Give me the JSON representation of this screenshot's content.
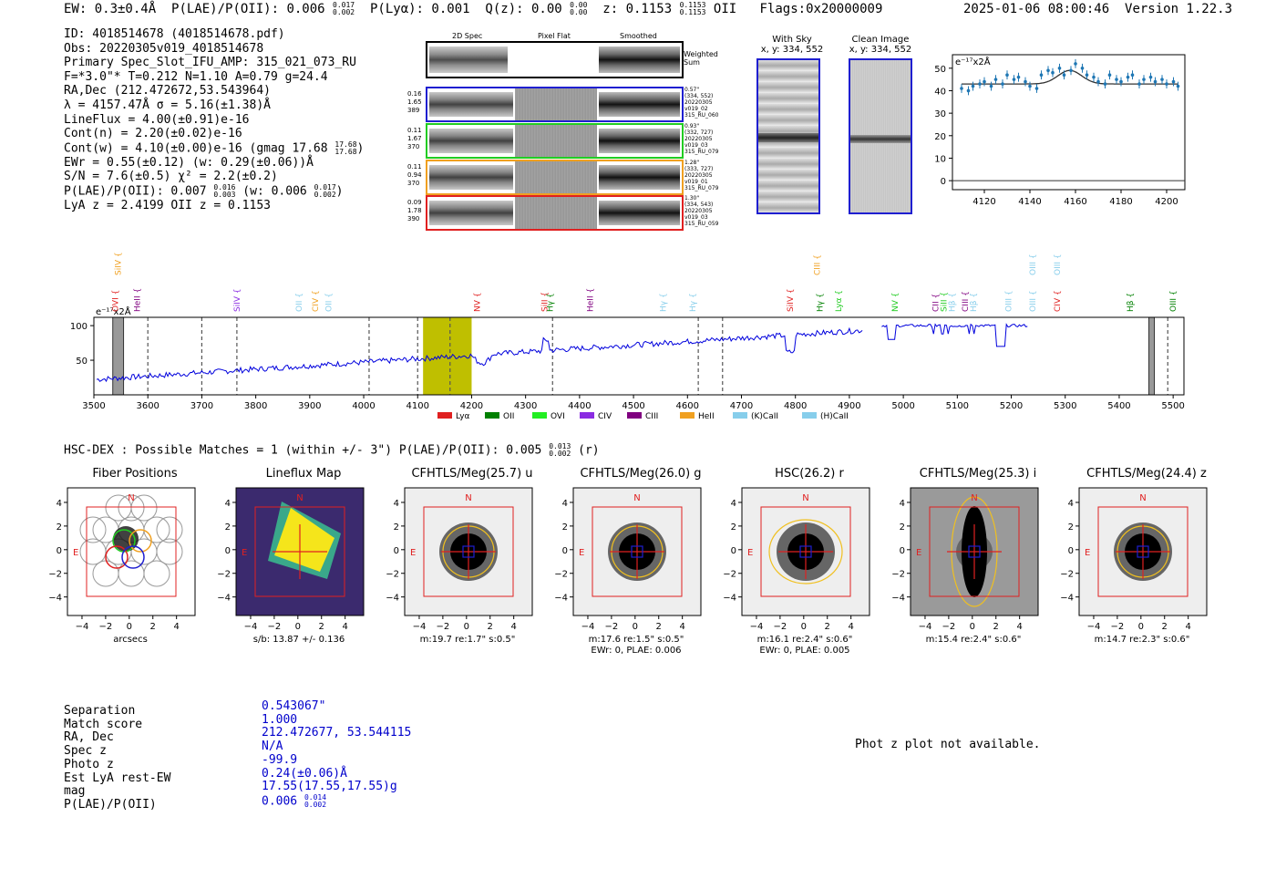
{
  "header": {
    "ew": "EW: 0.3±0.4Å",
    "plae_prefix": "P(LAE)/P(OII): 0.006",
    "plae_hi": "0.017",
    "plae_lo": "0.002",
    "plya": "P(Lyα): 0.001",
    "qz_prefix": "Q(z): 0.00",
    "qz_hi": "0.00",
    "qz_lo": "0.00",
    "z_prefix": "z: 0.1153",
    "z_hi": "0.1153",
    "z_lo": "0.1153",
    "z_line": "OII",
    "flags": "Flags:0x20000009",
    "datetime": "2025-01-06 08:00:46",
    "version": "Version 1.22.3"
  },
  "info": {
    "id": "ID: 4018514678 (4018514678.pdf)",
    "obs": "Obs: 20220305v019_4018514678",
    "primary": "Primary Spec_Slot_IFU_AMP: 315_021_073_RU",
    "fwhm": "F=*3.0\"* T=0.212 N=1.10 A=0.79 g=24.4",
    "radec": "RA,Dec (212.472672,53.543964)",
    "lambda": "λ = 4157.47Å  σ = 5.16(±1.38)Å",
    "lineflux": "LineFlux = 4.00(±0.91)e-16",
    "contn": "Cont(n) = 2.20(±0.02)e-16",
    "contw_prefix": "Cont(w) = 4.10(±0.00)e-16 (gmag 17.68",
    "contw_hi": "17.68",
    "contw_lo": "17.68",
    "ewr": "EWr = 0.55(±0.12) (w: 0.29(±0.06))Å",
    "sn": "S/N = 7.6(±0.5)  χ² = 2.2(±0.2)",
    "plae_prefix": "P(LAE)/P(OII): 0.007",
    "plae_hi": "0.016",
    "plae_lo": "0.003",
    "plae_w_prefix": "(w: 0.006",
    "plae_w_hi": "0.017",
    "plae_w_lo": "0.002",
    "lya": "LyA z = 2.4199  OII z = 0.1153"
  },
  "spec2d": {
    "col_2d": "2D Spec",
    "col_flat": "Pixel Flat",
    "col_smooth": "Smoothed",
    "weighted": "Weighted Sum",
    "rows": [
      {
        "color": "#1f1fd0",
        "l1": "0.16",
        "l2": "1.65",
        "l3": "389",
        "r1": "0.57\"",
        "r2": "(334, 552)",
        "r3": "20220305",
        "r4": "v019_02",
        "r5": "315_RU_060"
      },
      {
        "color": "#22cc22",
        "l1": "0.11",
        "l2": "1.67",
        "l3": "370",
        "r1": "0.93\"",
        "r2": "(332, 727)",
        "r3": "20220305",
        "r4": "v019_03",
        "r5": "315_RU_079"
      },
      {
        "color": "#f0a020",
        "l1": "0.11",
        "l2": "0.94",
        "l3": "370",
        "r1": "1.28\"",
        "r2": "(333, 727)",
        "r3": "20220305",
        "r4": "v019_01",
        "r5": "315_RU_079"
      },
      {
        "color": "#e02020",
        "l1": "0.09",
        "l2": "1.78",
        "l3": "390",
        "r1": "1.30\"",
        "r2": "(334, 543)",
        "r3": "20220305",
        "r4": "v019_03",
        "r5": "315_RU_059"
      }
    ]
  },
  "sky": {
    "with_sky": "With Sky",
    "with_sky_xy": "x, y: 334, 552",
    "clean": "Clean Image",
    "clean_xy": "x, y: 334, 552"
  },
  "chart_data": [
    {
      "type": "scatter",
      "title": "",
      "ylabel": "e⁻¹⁷x2Å",
      "xlim": [
        4106,
        4208
      ],
      "ylim": [
        -4,
        56
      ],
      "xticks": [
        4120,
        4140,
        4160,
        4180,
        4200
      ],
      "yticks": [
        0,
        10,
        20,
        30,
        40,
        50
      ],
      "points_x": [
        4110,
        4113,
        4115,
        4118,
        4120,
        4123,
        4125,
        4128,
        4130,
        4133,
        4135,
        4138,
        4140,
        4143,
        4145,
        4148,
        4150,
        4153,
        4155,
        4158,
        4160,
        4163,
        4165,
        4168,
        4170,
        4173,
        4175,
        4178,
        4180,
        4183,
        4185,
        4188,
        4190,
        4193,
        4195,
        4198,
        4200,
        4203,
        4205
      ],
      "points_y": [
        41,
        40,
        42,
        43,
        44,
        42,
        45,
        43,
        47,
        45,
        46,
        44,
        42,
        41,
        47,
        49,
        48,
        50,
        47,
        49,
        52,
        50,
        47,
        46,
        44,
        43,
        47,
        45,
        44,
        46,
        47,
        43,
        45,
        46,
        44,
        45,
        43,
        44,
        42
      ],
      "fit_baseline": 43,
      "fit_peak": 49,
      "fit_center": 4157.5,
      "fit_sigma": 5.2
    },
    {
      "type": "line",
      "ylabel": "e⁻¹⁷x2Å",
      "xlim": [
        3500,
        5520
      ],
      "ylim": [
        0,
        112
      ],
      "xticks": [
        3500,
        3600,
        3700,
        3800,
        3900,
        4000,
        4100,
        4200,
        4300,
        4400,
        4500,
        4600,
        4700,
        4800,
        4900,
        5000,
        5100,
        5200,
        5300,
        5400,
        5500
      ],
      "yticks": [
        50,
        100
      ],
      "highlight": [
        4110,
        4200
      ],
      "dashed_lines": [
        3600,
        3700,
        3765,
        4010,
        4100,
        4160,
        4350,
        4620,
        4665,
        5490
      ],
      "masked": [
        [
          3535,
          3555
        ],
        [
          5455,
          5465
        ]
      ],
      "line_labels": [
        {
          "label": "SiIV",
          "x": 3545,
          "row": 0,
          "color": "#f0a020"
        },
        {
          "label": "OVI",
          "x": 3540,
          "row": 1,
          "color": "#e02020"
        },
        {
          "label": "HeII",
          "x": 3580,
          "row": 1,
          "color": "#800080"
        },
        {
          "label": "SiIV",
          "x": 3765,
          "row": 1,
          "color": "#8a2be2"
        },
        {
          "label": "OII",
          "x": 3880,
          "row": 1,
          "color": "#87ceeb"
        },
        {
          "label": "CIV",
          "x": 3910,
          "row": 1,
          "color": "#f0a020"
        },
        {
          "label": "OII",
          "x": 3935,
          "row": 1,
          "color": "#87ceeb"
        },
        {
          "label": "NV",
          "x": 4210,
          "row": 1,
          "color": "#e02020"
        },
        {
          "label": "SiII",
          "x": 4335,
          "row": 1,
          "color": "#e02020"
        },
        {
          "label": "Hγ",
          "x": 4345,
          "row": 1,
          "color": "#008000"
        },
        {
          "label": "HeII",
          "x": 4420,
          "row": 1,
          "color": "#800080"
        },
        {
          "label": "Hγ",
          "x": 4555,
          "row": 1,
          "color": "#87ceeb"
        },
        {
          "label": "Hγ",
          "x": 4610,
          "row": 1,
          "color": "#87ceeb"
        },
        {
          "label": "SiIV",
          "x": 4790,
          "row": 1,
          "color": "#e02020"
        },
        {
          "label": "CIII",
          "x": 4840,
          "row": 0,
          "color": "#f0a020"
        },
        {
          "label": "Hγ",
          "x": 4845,
          "row": 1,
          "color": "#008000"
        },
        {
          "label": "Lyα",
          "x": 4880,
          "row": 1,
          "color": "#22cc22"
        },
        {
          "label": "NV",
          "x": 4985,
          "row": 1,
          "color": "#22cc22"
        },
        {
          "label": "CII",
          "x": 5060,
          "row": 1,
          "color": "#800080"
        },
        {
          "label": "SiII",
          "x": 5075,
          "row": 1,
          "color": "#22cc22"
        },
        {
          "label": "Hβ",
          "x": 5090,
          "row": 1,
          "color": "#87ceeb"
        },
        {
          "label": "CIII",
          "x": 5115,
          "row": 1,
          "color": "#800080"
        },
        {
          "label": "Hβ",
          "x": 5130,
          "row": 1,
          "color": "#87ceeb"
        },
        {
          "label": "OIII",
          "x": 5195,
          "row": 1,
          "color": "#87ceeb"
        },
        {
          "label": "OIII",
          "x": 5240,
          "row": 0,
          "color": "#87ceeb"
        },
        {
          "label": "OIII",
          "x": 5240,
          "row": 1,
          "color": "#87ceeb"
        },
        {
          "label": "OIII",
          "x": 5285,
          "row": 0,
          "color": "#87ceeb"
        },
        {
          "label": "CIV",
          "x": 5285,
          "row": 1,
          "color": "#e02020"
        },
        {
          "label": "Hβ",
          "x": 5420,
          "row": 1,
          "color": "#008000"
        },
        {
          "label": "OIII",
          "x": 5500,
          "row": 1,
          "color": "#008000"
        }
      ],
      "legend": [
        {
          "label": "Lyα",
          "color": "#e02020"
        },
        {
          "label": "OII",
          "color": "#008000"
        },
        {
          "label": "OVI",
          "color": "#22ee22"
        },
        {
          "label": "CIV",
          "color": "#8a2be2"
        },
        {
          "label": "CIII",
          "color": "#800080"
        },
        {
          "label": "HeII",
          "color": "#f0a020"
        },
        {
          "label": "(K)CaII",
          "color": "#87ceeb"
        },
        {
          "label": "(H)CaII",
          "color": "#87ceeb"
        }
      ]
    }
  ],
  "hsc": {
    "title_prefix": "HSC-DEX : Possible Matches = 1 (within +/- 3\")  P(LAE)/P(OII): 0.005",
    "title_hi": "0.013",
    "title_lo": "0.002",
    "title_suffix": "(r)"
  },
  "thumbs": [
    {
      "title": "Fiber Positions",
      "foot1": "arcsecs",
      "foot2": ""
    },
    {
      "title": "Lineflux Map",
      "foot1": "s/b: 13.87 +/- 0.136",
      "foot2": ""
    },
    {
      "title": "CFHTLS/Meg(25.7) u",
      "foot1": "m:19.7  re:1.7\"  s:0.5\"",
      "foot2": ""
    },
    {
      "title": "CFHTLS/Meg(26.0) g",
      "foot1": "m:17.6  re:1.5\"  s:0.5\"",
      "foot2": "EWr: 0, PLAE: 0.006"
    },
    {
      "title": "HSC(26.2) r",
      "foot1": "m:16.1  re:2.4\"  s:0.6\"",
      "foot2": "EWr: 0, PLAE: 0.005"
    },
    {
      "title": "CFHTLS/Meg(25.3) i",
      "foot1": "m:15.4  re:2.4\"  s:0.6\"",
      "foot2": ""
    },
    {
      "title": "CFHTLS/Meg(24.4) z",
      "foot1": "m:14.7  re:2.3\"  s:0.6\"",
      "foot2": ""
    }
  ],
  "thumb_axis": {
    "ticks": [
      "−4",
      "−2",
      "0",
      "2",
      "4"
    ],
    "yticks": [
      "4",
      "2",
      "0",
      "−2",
      "−4"
    ],
    "north": "N",
    "east": "E"
  },
  "match": {
    "labels": [
      "Separation",
      "Match score",
      "RA, Dec",
      "Spec z",
      "Photo z",
      "Est LyA rest-EW",
      "mag",
      "P(LAE)/P(OII)"
    ],
    "values": [
      "0.543067\"",
      "1.000",
      "212.472677, 53.544115",
      "N/A",
      "-99.9",
      "0.24(±0.06)Å",
      "17.55(17.55,17.55)g"
    ],
    "plae_prefix": "0.006",
    "plae_hi": "0.014",
    "plae_lo": "0.002"
  },
  "photz": "Phot z plot not available."
}
